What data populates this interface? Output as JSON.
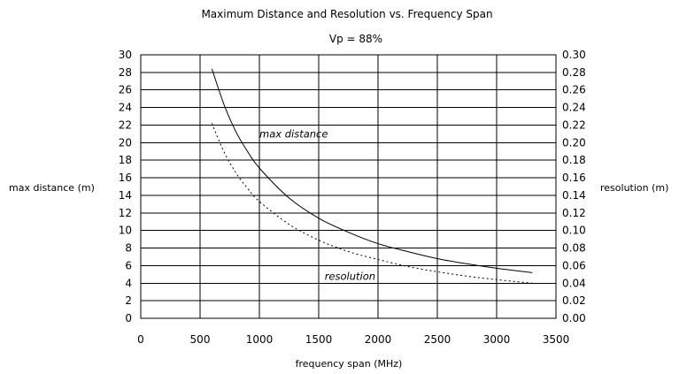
{
  "chart_data": {
    "type": "line",
    "title": "Maximum Distance and Resolution vs. Frequency Span",
    "subtitle": "Vp =  88%",
    "xlabel": "frequency span (MHz)",
    "ylabel_left": "max  distance (m)",
    "ylabel_right": "resolution (m)",
    "xlim": [
      0,
      3500
    ],
    "ylim_left": [
      0,
      30
    ],
    "ylim_right": [
      0,
      0.3
    ],
    "x_ticks": [
      "0",
      "500",
      "1000",
      "1500",
      "2000",
      "2500",
      "3000",
      "3500"
    ],
    "y_left_ticks": [
      "0",
      "2",
      "4",
      "6",
      "8",
      "10",
      "12",
      "14",
      "16",
      "18",
      "20",
      "22",
      "24",
      "26",
      "28",
      "30"
    ],
    "y_right_ticks": [
      "0.00",
      "0.02",
      "0.04",
      "0.06",
      "0.08",
      "0.10",
      "0.12",
      "0.14",
      "0.16",
      "0.18",
      "0.20",
      "0.22",
      "0.24",
      "0.26",
      "0.28",
      "0.30"
    ],
    "grid": true,
    "series": [
      {
        "name": "max distance",
        "axis": "left",
        "style": "solid",
        "x": [
          600,
          700,
          800,
          900,
          1000,
          1250,
          1500,
          1750,
          2000,
          2250,
          2500,
          2750,
          3000,
          3300
        ],
        "y": [
          28.4,
          24.4,
          21.3,
          19.0,
          17.1,
          13.7,
          11.4,
          9.8,
          8.5,
          7.6,
          6.8,
          6.2,
          5.7,
          5.2
        ]
      },
      {
        "name": "resolution",
        "axis": "right",
        "style": "dotted",
        "x": [
          600,
          700,
          800,
          900,
          1000,
          1250,
          1500,
          1750,
          2000,
          2250,
          2500,
          2750,
          3000,
          3300
        ],
        "y": [
          0.222,
          0.19,
          0.166,
          0.148,
          0.133,
          0.107,
          0.089,
          0.076,
          0.067,
          0.059,
          0.053,
          0.048,
          0.044,
          0.04
        ]
      }
    ],
    "annotations": [
      {
        "text": "max distance",
        "x": 1000,
        "y": 21
      },
      {
        "text": "resolution",
        "x": 1550,
        "y": 0.048
      }
    ]
  }
}
